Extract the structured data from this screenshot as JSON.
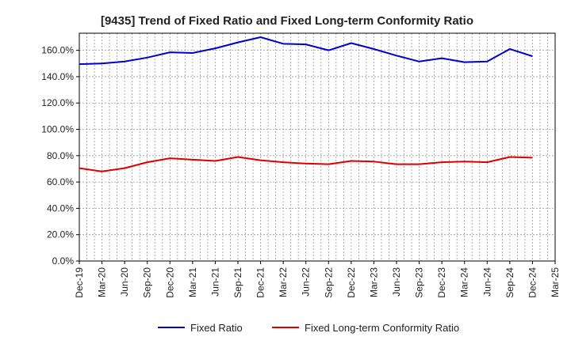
{
  "chart_data": {
    "type": "line",
    "title": "[9435]  Trend of Fixed Ratio and Fixed Long-term Conformity Ratio",
    "xlabel": "",
    "ylabel": "",
    "categories": [
      "Dec-19",
      "Mar-20",
      "Jun-20",
      "Sep-20",
      "Dec-20",
      "Mar-21",
      "Jun-21",
      "Sep-21",
      "Dec-21",
      "Mar-22",
      "Jun-22",
      "Sep-22",
      "Dec-22",
      "Mar-23",
      "Jun-23",
      "Sep-23",
      "Dec-23",
      "Mar-24",
      "Jun-24",
      "Sep-24",
      "Dec-24",
      "Mar-25"
    ],
    "yticks": [
      "0.0%",
      "20.0%",
      "40.0%",
      "60.0%",
      "80.0%",
      "100.0%",
      "120.0%",
      "140.0%",
      "160.0%"
    ],
    "ylim": [
      0,
      173
    ],
    "grid": true,
    "legend_position": "bottom",
    "series": [
      {
        "name": "Fixed Ratio",
        "color": "#0000cc",
        "values": [
          149.5,
          150.0,
          151.5,
          154.5,
          158.5,
          158.0,
          161.5,
          166.0,
          170.0,
          165.0,
          164.5,
          160.0,
          165.5,
          161.0,
          156.0,
          151.5,
          154.0,
          151.0,
          151.5,
          161.0,
          155.5,
          null
        ]
      },
      {
        "name": "Fixed Long-term Conformity Ratio",
        "color": "#dd0000",
        "values": [
          70.5,
          68.0,
          70.5,
          75.0,
          78.0,
          77.0,
          76.0,
          79.0,
          76.5,
          75.0,
          74.0,
          73.5,
          76.0,
          75.5,
          73.5,
          73.5,
          75.0,
          75.5,
          75.0,
          79.0,
          78.5,
          null
        ]
      }
    ]
  }
}
